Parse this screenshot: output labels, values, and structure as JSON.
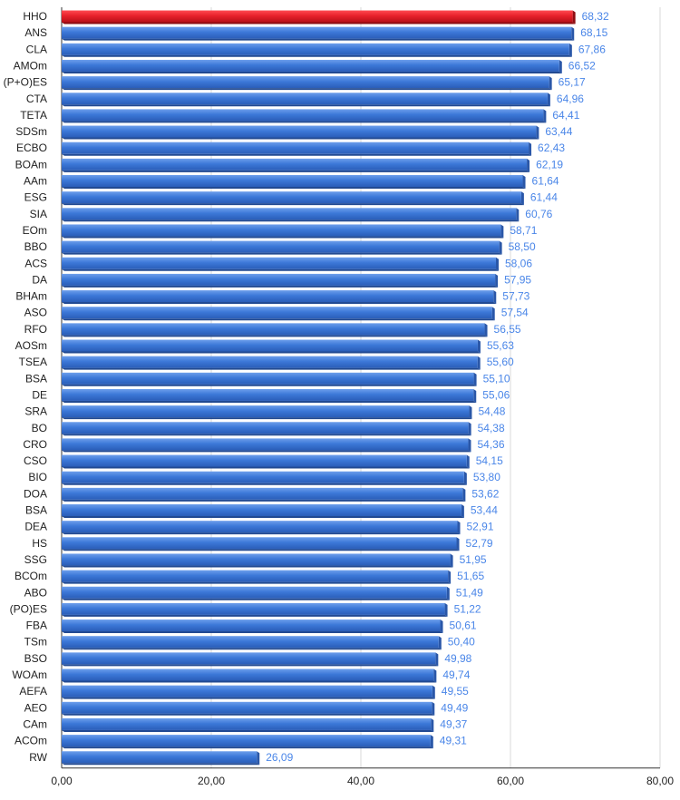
{
  "chart_data": {
    "type": "bar",
    "orientation": "horizontal",
    "title": "",
    "xlabel": "",
    "ylabel": "",
    "xlim": [
      0,
      80
    ],
    "x_ticks": [
      "0,00",
      "20,00",
      "40,00",
      "60,00",
      "80,00"
    ],
    "grid": true,
    "legend": "none",
    "colors": {
      "default_bar": "#3c78d8",
      "highlight_bar": "#e8212b",
      "value_label": "#4a86e8"
    },
    "highlight_index": 0,
    "categories": [
      "HHO",
      "ANS",
      "CLA",
      "AMOm",
      "(P+O)ES",
      "CTA",
      "TETA",
      "SDSm",
      "ECBO",
      "BOAm",
      "AAm",
      "ESG",
      "SIA",
      "EOm",
      "BBO",
      "ACS",
      "DA",
      "BHAm",
      "ASO",
      "RFO",
      "AOSm",
      "TSEA",
      "BSA",
      "DE",
      "SRA",
      "BO",
      "CRO",
      "CSO",
      "BIO",
      "DOA",
      "BSA",
      "DEA",
      "HS",
      "SSG",
      "BCOm",
      "ABO",
      "(PO)ES",
      "FBA",
      "TSm",
      "BSO",
      "WOAm",
      "AEFA",
      "AEO",
      "CAm",
      "ACOm",
      "RW"
    ],
    "values": [
      68.32,
      68.15,
      67.86,
      66.52,
      65.17,
      64.96,
      64.41,
      63.44,
      62.43,
      62.19,
      61.64,
      61.44,
      60.76,
      58.71,
      58.5,
      58.06,
      57.95,
      57.73,
      57.54,
      56.55,
      55.63,
      55.6,
      55.1,
      55.06,
      54.48,
      54.38,
      54.36,
      54.15,
      53.8,
      53.62,
      53.44,
      52.91,
      52.79,
      51.95,
      51.65,
      51.49,
      51.22,
      50.61,
      50.4,
      49.98,
      49.74,
      49.55,
      49.49,
      49.37,
      49.31,
      26.09
    ],
    "value_labels": [
      "68,32",
      "68,15",
      "67,86",
      "66,52",
      "65,17",
      "64,96",
      "64,41",
      "63,44",
      "62,43",
      "62,19",
      "61,64",
      "61,44",
      "60,76",
      "58,71",
      "58,50",
      "58,06",
      "57,95",
      "57,73",
      "57,54",
      "56,55",
      "55,63",
      "55,60",
      "55,10",
      "55,06",
      "54,48",
      "54,38",
      "54,36",
      "54,15",
      "53,80",
      "53,62",
      "53,44",
      "52,91",
      "52,79",
      "51,95",
      "51,65",
      "51,49",
      "51,22",
      "50,61",
      "50,40",
      "49,98",
      "49,74",
      "49,55",
      "49,49",
      "49,37",
      "49,31",
      "26,09"
    ]
  }
}
